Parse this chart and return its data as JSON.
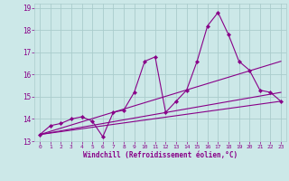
{
  "title": "",
  "xlabel": "Windchill (Refroidissement éolien,°C)",
  "background_color": "#cce8e8",
  "grid_color": "#aacccc",
  "line_color": "#880088",
  "xlim": [
    -0.5,
    23.5
  ],
  "ylim": [
    13.0,
    19.2
  ],
  "yticks": [
    13,
    14,
    15,
    16,
    17,
    18,
    19
  ],
  "xticks": [
    0,
    1,
    2,
    3,
    4,
    5,
    6,
    7,
    8,
    9,
    10,
    11,
    12,
    13,
    14,
    15,
    16,
    17,
    18,
    19,
    20,
    21,
    22,
    23
  ],
  "series1_x": [
    0,
    1,
    2,
    3,
    4,
    5,
    6,
    7,
    8,
    9,
    10,
    11,
    12,
    13,
    14,
    15,
    16,
    17,
    18,
    19,
    20,
    21,
    22,
    23
  ],
  "series1_y": [
    13.3,
    13.7,
    13.8,
    14.0,
    14.1,
    13.9,
    13.2,
    14.3,
    14.4,
    15.2,
    16.6,
    16.8,
    14.3,
    14.8,
    15.3,
    16.6,
    18.2,
    18.8,
    17.8,
    16.6,
    16.2,
    15.3,
    15.2,
    14.8
  ],
  "series2_x": [
    0,
    23
  ],
  "series2_y": [
    13.3,
    16.6
  ],
  "series3_x": [
    0,
    23
  ],
  "series3_y": [
    13.3,
    15.2
  ],
  "series4_x": [
    0,
    23
  ],
  "series4_y": [
    13.3,
    14.8
  ]
}
